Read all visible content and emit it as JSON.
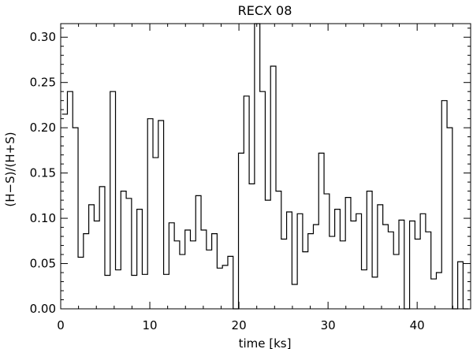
{
  "chart_data": {
    "type": "line",
    "style": "step",
    "title": "RECX 08",
    "xlabel": "time [ks]",
    "ylabel": "(H−S)/(H+S)",
    "xlim": [
      0,
      46
    ],
    "ylim": [
      0,
      0.315
    ],
    "grid": false,
    "xticks": [
      0,
      10,
      20,
      30,
      40
    ],
    "xtick_labels": [
      "0",
      "10",
      "20",
      "30",
      "40"
    ],
    "yticks": [
      0.0,
      0.05,
      0.1,
      0.15,
      0.2,
      0.25,
      0.3
    ],
    "ytick_labels": [
      "0.00",
      "0.05",
      "0.10",
      "0.15",
      "0.20",
      "0.25",
      "0.30"
    ],
    "bin_width": 0.6,
    "series": [
      {
        "x_start": 0.15,
        "values": [
          0.215,
          0.24,
          0.2,
          0.057,
          0.083,
          0.115,
          0.097,
          0.135,
          0.037,
          0.24,
          0.043,
          0.13,
          0.122,
          0.037,
          0.11,
          0.038,
          0.21,
          0.167,
          0.208,
          0.038,
          0.095,
          0.075,
          0.06,
          0.087,
          0.075,
          0.125,
          0.087,
          0.065,
          0.083,
          0.045,
          0.048,
          0.058,
          0.0,
          0.172,
          0.235,
          0.138,
          0.315,
          0.24,
          0.12,
          0.268,
          0.13,
          0.077,
          0.107,
          0.027,
          0.105,
          0.063,
          0.083,
          0.093,
          0.172,
          0.127,
          0.08,
          0.11,
          0.075,
          0.123,
          0.097,
          0.105,
          0.043,
          0.13,
          0.035,
          0.115,
          0.093,
          0.085,
          0.06,
          0.098,
          0.0,
          0.097,
          0.077,
          0.105,
          0.085,
          0.033,
          0.04,
          0.23,
          0.2,
          0.0,
          0.052,
          0.0
        ]
      }
    ]
  }
}
